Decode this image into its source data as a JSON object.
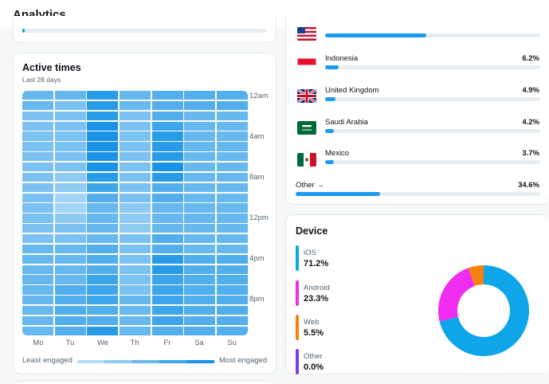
{
  "header": {
    "title": "Analytics"
  },
  "stub": {
    "progress_fraction": 0.01
  },
  "active_times": {
    "title": "Active times",
    "subtitle": "Last 28 days",
    "hours": [
      "12am",
      "4am",
      "8am",
      "12pm",
      "4pm",
      "8pm"
    ],
    "days": [
      "Mo",
      "Tu",
      "We",
      "Th",
      "Fr",
      "Sa",
      "Su"
    ],
    "legend": {
      "least": "Least engaged",
      "most": "Most engaged"
    },
    "palette": [
      "#b4dbf7",
      "#a3d3f5",
      "#8fcaf3",
      "#7bc1f1",
      "#66b8ef",
      "#52aeed",
      "#3da5eb",
      "#299ce9",
      "#1a93e6"
    ],
    "levels": [
      [
        4,
        4,
        7,
        4,
        5,
        5,
        5
      ],
      [
        4,
        3,
        7,
        4,
        5,
        5,
        5
      ],
      [
        3,
        3,
        7,
        3,
        5,
        4,
        4
      ],
      [
        3,
        3,
        8,
        3,
        6,
        4,
        4
      ],
      [
        3,
        3,
        8,
        3,
        7,
        4,
        4
      ],
      [
        3,
        3,
        8,
        3,
        7,
        4,
        4
      ],
      [
        3,
        3,
        8,
        3,
        7,
        4,
        4
      ],
      [
        3,
        3,
        8,
        3,
        8,
        4,
        4
      ],
      [
        3,
        2,
        7,
        3,
        7,
        4,
        4
      ],
      [
        3,
        2,
        6,
        3,
        5,
        4,
        4
      ],
      [
        3,
        1,
        5,
        3,
        5,
        4,
        4
      ],
      [
        3,
        1,
        4,
        2,
        4,
        4,
        4
      ],
      [
        3,
        2,
        4,
        2,
        4,
        4,
        4
      ],
      [
        3,
        3,
        4,
        2,
        4,
        4,
        4
      ],
      [
        3,
        3,
        4,
        3,
        5,
        4,
        4
      ],
      [
        4,
        4,
        5,
        3,
        5,
        4,
        4
      ],
      [
        4,
        4,
        5,
        3,
        7,
        5,
        5
      ],
      [
        4,
        4,
        5,
        3,
        7,
        5,
        5
      ],
      [
        4,
        4,
        6,
        3,
        6,
        5,
        5
      ],
      [
        4,
        5,
        6,
        3,
        6,
        5,
        5
      ],
      [
        4,
        5,
        6,
        4,
        6,
        5,
        5
      ],
      [
        4,
        5,
        5,
        4,
        6,
        5,
        5
      ],
      [
        4,
        5,
        5,
        4,
        6,
        5,
        5
      ],
      [
        4,
        5,
        7,
        4,
        5,
        5,
        5
      ]
    ]
  },
  "country": {
    "first": {
      "flag": "usa-flag-icon",
      "fraction": 0.47
    },
    "items": [
      {
        "name": "Indonesia",
        "pct": "6.2%",
        "flag": "indonesia-flag-icon",
        "fraction": 0.062
      },
      {
        "name": "United Kingdom",
        "pct": "4.9%",
        "flag": "uk-flag-icon",
        "fraction": 0.049
      },
      {
        "name": "Saudi Arabia",
        "pct": "4.2%",
        "flag": "saudi-arabia-flag-icon",
        "fraction": 0.042
      },
      {
        "name": "Mexico",
        "pct": "3.7%",
        "flag": "mexico-flag-icon",
        "fraction": 0.037
      }
    ],
    "other": {
      "label": "Other →",
      "pct": "34.6%",
      "fraction": 0.346
    }
  },
  "device": {
    "title": "Device",
    "items": [
      {
        "name": "iOS",
        "pct": "71.2%",
        "value": 71.2,
        "color": "#0ea5e9"
      },
      {
        "name": "Android",
        "pct": "23.3%",
        "value": 23.3,
        "color": "#ef2df0"
      },
      {
        "name": "Web",
        "pct": "5.5%",
        "value": 5.5,
        "color": "#f5820d"
      },
      {
        "name": "Other",
        "pct": "0.0%",
        "value": 0.0,
        "color": "#7c3aed"
      }
    ]
  }
}
